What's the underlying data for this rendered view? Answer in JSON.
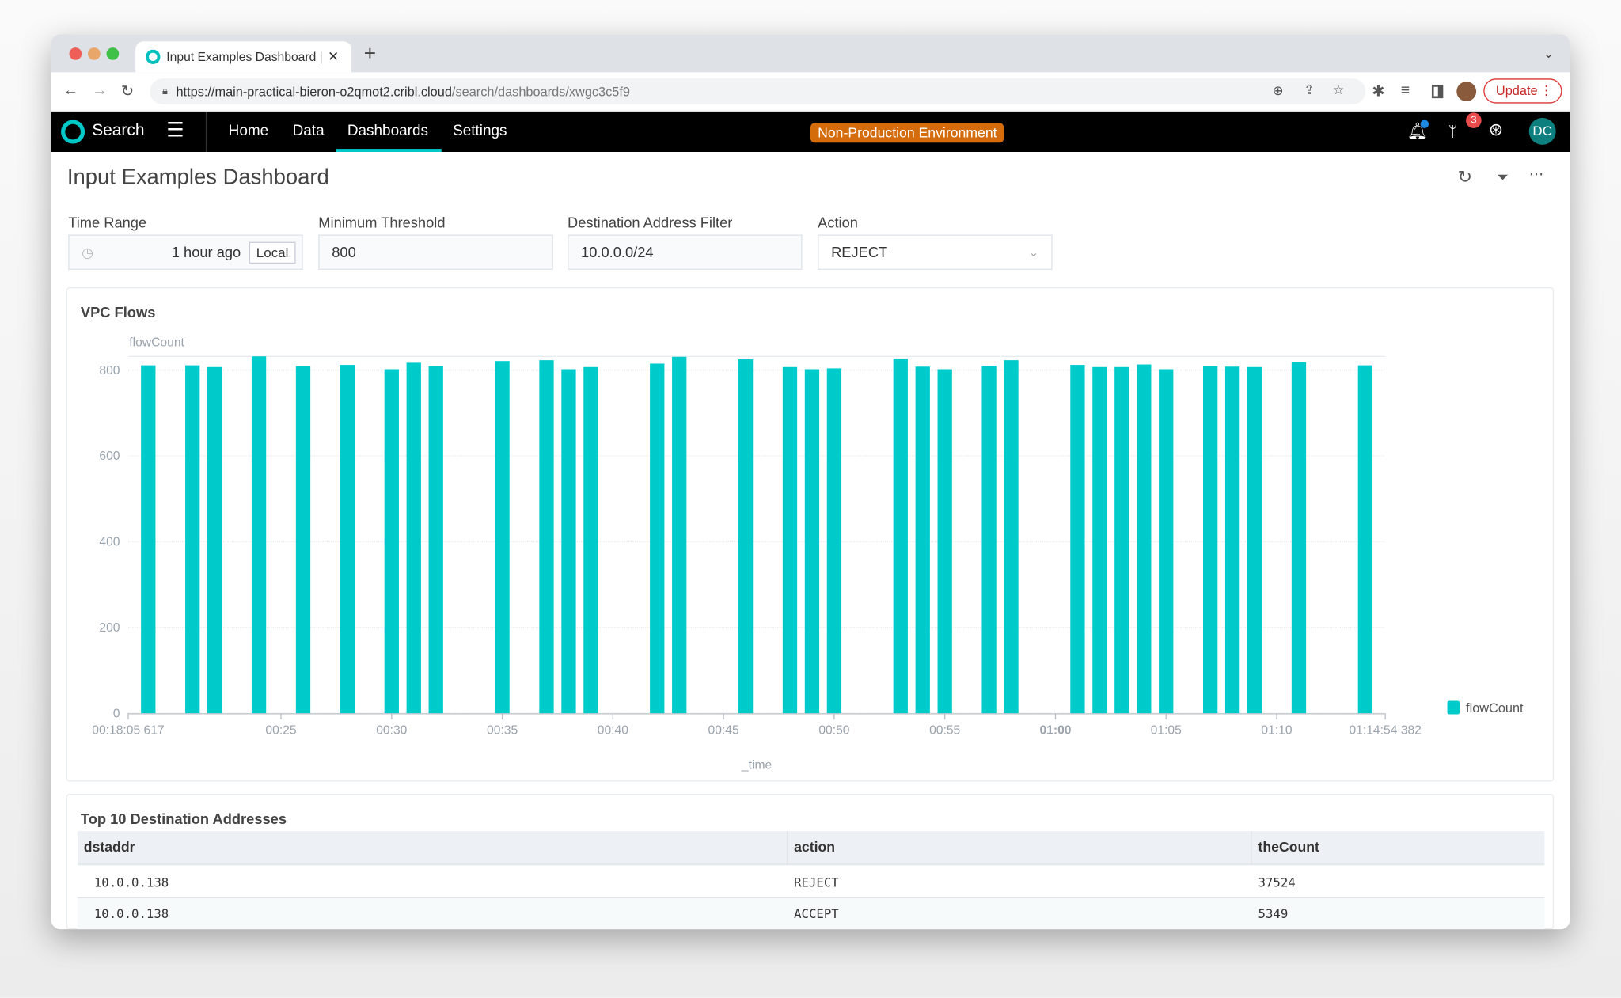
{
  "browser": {
    "tab_title": "Input Examples Dashboard | C",
    "url_host": "https://main-practical-bieron-o2qmot2.cribl.cloud",
    "url_path": "/search/dashboards/xwgc3c5f9",
    "update_label": "Update"
  },
  "appnav": {
    "brand": "Search",
    "links": [
      "Home",
      "Data",
      "Dashboards",
      "Settings"
    ],
    "active": "Dashboards",
    "env_badge": "Non-Production Environment",
    "notif_count": "3",
    "avatar": "DC",
    "accent": "#00c8c8"
  },
  "dashboard": {
    "title": "Input Examples Dashboard",
    "inputs": {
      "time_range": {
        "label": "Time Range",
        "value": "1 hour ago",
        "tz": "Local"
      },
      "min_threshold": {
        "label": "Minimum Threshold",
        "value": "800"
      },
      "dest_filter": {
        "label": "Destination Address Filter",
        "value": "10.0.0.0/24"
      },
      "action": {
        "label": "Action",
        "value": "REJECT"
      }
    }
  },
  "chart_data": {
    "type": "bar",
    "title": "VPC Flows",
    "xlabel": "_time",
    "ylabel": "flowCount",
    "ylim": [
      0,
      832
    ],
    "yticks": [
      "0",
      "200",
      "400",
      "600",
      "800"
    ],
    "xticks": [
      "00:18:05 617",
      "00:25",
      "00:30",
      "00:35",
      "00:40",
      "00:45",
      "00:50",
      "00:55",
      "01:00",
      "01:05",
      "01:10",
      "01:14:54 382"
    ],
    "xrange": [
      "00:18:05.617",
      "01:14:54.382"
    ],
    "legend": "right",
    "grid": true,
    "color": "#00cbcb",
    "series": [
      {
        "name": "flowCount",
        "x": [
          "00:19",
          "00:21",
          "00:22",
          "00:24",
          "00:26",
          "00:28",
          "00:30",
          "00:31",
          "00:32",
          "00:35",
          "00:37",
          "00:38",
          "00:39",
          "00:42",
          "00:43",
          "00:46",
          "00:48",
          "00:49",
          "00:50",
          "00:53",
          "00:54",
          "00:55",
          "00:57",
          "00:58",
          "01:01",
          "01:02",
          "01:03",
          "01:04",
          "01:05",
          "01:07",
          "01:08",
          "01:09",
          "01:11",
          "01:14"
        ],
        "values": [
          811,
          811,
          807,
          832,
          809,
          812,
          802,
          817,
          809,
          821,
          823,
          802,
          807,
          815,
          831,
          825,
          807,
          802,
          804,
          827,
          808,
          802,
          810,
          823,
          812,
          807,
          807,
          813,
          802,
          809,
          808,
          807,
          818,
          811
        ]
      }
    ]
  },
  "table": {
    "title": "Top 10 Destination Addresses",
    "columns": [
      "dstaddr",
      "action",
      "theCount"
    ],
    "rows": [
      [
        "10.0.0.138",
        "REJECT",
        "37524"
      ],
      [
        "10.0.0.138",
        "ACCEPT",
        "5349"
      ]
    ]
  }
}
